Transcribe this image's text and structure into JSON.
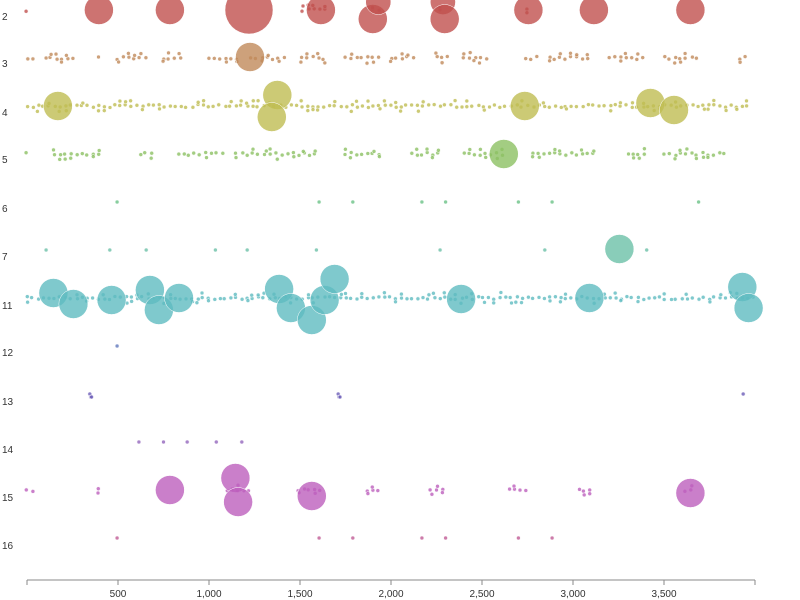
{
  "chart_data": {
    "type": "scatter",
    "title": "",
    "xlabel": "",
    "ylabel": "",
    "xlim": [
      0,
      4000
    ],
    "x_ticks": [
      500,
      1000,
      1500,
      2000,
      2500,
      3000,
      3500
    ],
    "x_tick_labels": [
      "500",
      "1,000",
      "1,500",
      "2,000",
      "2,500",
      "3,000",
      "3,500"
    ],
    "categories": [
      "2",
      "3",
      "4",
      "5",
      "6",
      "7",
      "11",
      "12",
      "13",
      "14",
      "15",
      "16"
    ],
    "colors": [
      "#c0504d",
      "#c0895a",
      "#bfbd52",
      "#8cc063",
      "#6ac286",
      "#6cc0a8",
      "#5fbcc0",
      "#6078bd",
      "#6b5cb8",
      "#9466bd",
      "#bd5fbd",
      "#c05b95"
    ],
    "grid": false,
    "legend": "none",
    "large_points": [
      {
        "row": "2",
        "x": 395,
        "size": 5
      },
      {
        "row": "2",
        "x": 785,
        "size": 5
      },
      {
        "row": "2",
        "x": 1220,
        "size": 10
      },
      {
        "row": "2",
        "x": 1615,
        "size": 5
      },
      {
        "row": "2",
        "x": 1900,
        "size": 5
      },
      {
        "row": "2",
        "x": 1930,
        "size": 4
      },
      {
        "row": "2",
        "x": 2285,
        "size": 4
      },
      {
        "row": "2",
        "x": 2295,
        "size": 5
      },
      {
        "row": "2",
        "x": 2755,
        "size": 5
      },
      {
        "row": "2",
        "x": 3115,
        "size": 5
      },
      {
        "row": "2",
        "x": 3645,
        "size": 5
      },
      {
        "row": "3",
        "x": 1225,
        "size": 5
      },
      {
        "row": "4",
        "x": 170,
        "size": 5
      },
      {
        "row": "4",
        "x": 1375,
        "size": 5
      },
      {
        "row": "4",
        "x": 1345,
        "size": 5
      },
      {
        "row": "4",
        "x": 2735,
        "size": 5
      },
      {
        "row": "4",
        "x": 3425,
        "size": 5
      },
      {
        "row": "4",
        "x": 3555,
        "size": 5
      },
      {
        "row": "5",
        "x": 2620,
        "size": 5
      },
      {
        "row": "7",
        "x": 3255,
        "size": 5
      },
      {
        "row": "11",
        "x": 145,
        "size": 5
      },
      {
        "row": "11",
        "x": 255,
        "size": 5
      },
      {
        "row": "11",
        "x": 465,
        "size": 5
      },
      {
        "row": "11",
        "x": 675,
        "size": 5
      },
      {
        "row": "11",
        "x": 725,
        "size": 5
      },
      {
        "row": "11",
        "x": 835,
        "size": 5
      },
      {
        "row": "11",
        "x": 1385,
        "size": 5
      },
      {
        "row": "11",
        "x": 1450,
        "size": 5
      },
      {
        "row": "11",
        "x": 1565,
        "size": 5
      },
      {
        "row": "11",
        "x": 1635,
        "size": 5
      },
      {
        "row": "11",
        "x": 1690,
        "size": 5
      },
      {
        "row": "11",
        "x": 2385,
        "size": 5
      },
      {
        "row": "11",
        "x": 3090,
        "size": 5
      },
      {
        "row": "11",
        "x": 3930,
        "size": 5
      },
      {
        "row": "11",
        "x": 3965,
        "size": 5
      },
      {
        "row": "15",
        "x": 785,
        "size": 5
      },
      {
        "row": "15",
        "x": 1145,
        "size": 5
      },
      {
        "row": "15",
        "x": 1160,
        "size": 5
      },
      {
        "row": "15",
        "x": 1565,
        "size": 5
      },
      {
        "row": "15",
        "x": 3645,
        "size": 5
      }
    ],
    "small_points": [
      {
        "row": "6",
        "x": [
          495,
          1605,
          1790,
          2170,
          2300,
          2700,
          2885,
          3690
        ]
      },
      {
        "row": "7",
        "x": [
          105,
          455,
          655,
          1035,
          1210,
          1590,
          2270,
          2845,
          3405
        ]
      },
      {
        "row": "12",
        "x": [
          495
        ]
      },
      {
        "row": "13",
        "x": [
          345,
          350,
          355,
          1710,
          1715,
          1720,
          3935
        ]
      },
      {
        "row": "14",
        "x": [
          615,
          750,
          880,
          1040,
          1180
        ]
      },
      {
        "row": "16",
        "x": [
          495,
          1605,
          1790,
          2170,
          2300,
          2700,
          2885
        ]
      }
    ],
    "dense_rows": [
      {
        "row": "2",
        "ranges": [
          [
            0,
            30
          ],
          [
            1515,
            1640
          ],
          [
            1900,
            1960
          ],
          [
            2270,
            2300
          ],
          [
            2750,
            2770
          ]
        ]
      },
      {
        "row": "3",
        "ranges": [
          [
            0,
            60
          ],
          [
            100,
            260
          ],
          [
            390,
            420
          ],
          [
            500,
            680
          ],
          [
            750,
            860
          ],
          [
            1000,
            1180
          ],
          [
            1230,
            1420
          ],
          [
            1510,
            1640
          ],
          [
            1750,
            1960
          ],
          [
            2000,
            2130
          ],
          [
            2250,
            2320
          ],
          [
            2400,
            2540
          ],
          [
            2740,
            2830
          ],
          [
            2870,
            3090
          ],
          [
            3200,
            3400
          ],
          [
            3500,
            3700
          ],
          [
            3920,
            3960
          ]
        ]
      },
      {
        "row": "4",
        "ranges": [
          [
            0,
            3960
          ]
        ]
      },
      {
        "row": "5",
        "ranges": [
          [
            0,
            30
          ],
          [
            150,
            420
          ],
          [
            620,
            710
          ],
          [
            830,
            1090
          ],
          [
            1150,
            1280
          ],
          [
            1310,
            1610
          ],
          [
            1750,
            1950
          ],
          [
            2110,
            2280
          ],
          [
            2400,
            2620
          ],
          [
            2780,
            3120
          ],
          [
            3300,
            3400
          ],
          [
            3500,
            3850
          ]
        ]
      },
      {
        "row": "11",
        "ranges": [
          [
            0,
            4000
          ]
        ]
      },
      {
        "row": "15",
        "ranges": [
          [
            0,
            60
          ],
          [
            390,
            420
          ],
          [
            1100,
            1230
          ],
          [
            1490,
            1620
          ],
          [
            1870,
            1940
          ],
          [
            2220,
            2300
          ],
          [
            2650,
            2770
          ],
          [
            3030,
            3100
          ],
          [
            3620,
            3680
          ]
        ]
      }
    ]
  }
}
